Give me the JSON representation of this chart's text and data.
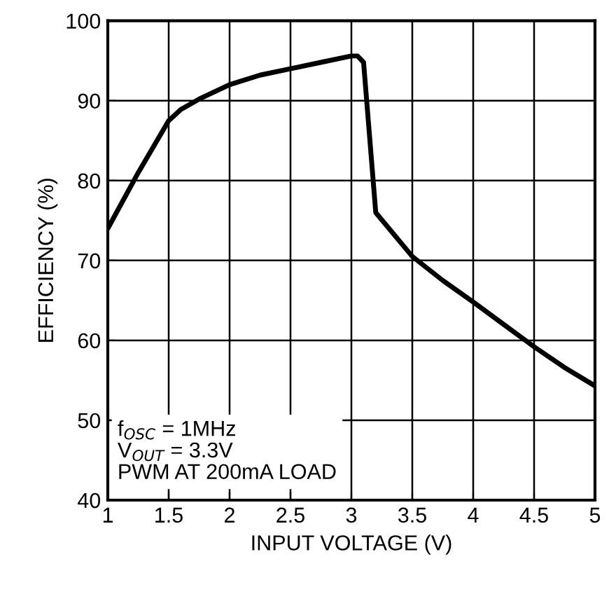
{
  "chart_data": {
    "type": "line",
    "xlabel": "INPUT VOLTAGE (V)",
    "ylabel": "EFFICIENCY (%)",
    "x": [
      1,
      1.25,
      1.5,
      1.6,
      1.75,
      2,
      2.25,
      2.5,
      2.75,
      3,
      3.05,
      3.1,
      3.2,
      3.5,
      3.75,
      4,
      4.25,
      4.5,
      4.75,
      5
    ],
    "series": [
      {
        "color": "#000000",
        "values": [
          74,
          81,
          87.5,
          88.9,
          90.2,
          92,
          93.2,
          94,
          94.8,
          95.6,
          95.6,
          94.8,
          76,
          70.5,
          67.5,
          64.8,
          62,
          59.2,
          56.6,
          54.3
        ]
      }
    ],
    "xlim": [
      1,
      5
    ],
    "xticks": [
      1,
      1.5,
      2,
      2.5,
      3,
      3.5,
      4,
      4.5,
      5
    ],
    "ylim": [
      40,
      100
    ],
    "yticks": [
      40,
      50,
      60,
      70,
      80,
      90,
      100
    ],
    "grid": true,
    "marker": "none",
    "line_style": "solid",
    "annotations": [
      "f$_{OSC}$ = 1MHz\nV$_{OUT}$ = 3.3V\nPWM AT 200mA LOAD"
    ]
  }
}
